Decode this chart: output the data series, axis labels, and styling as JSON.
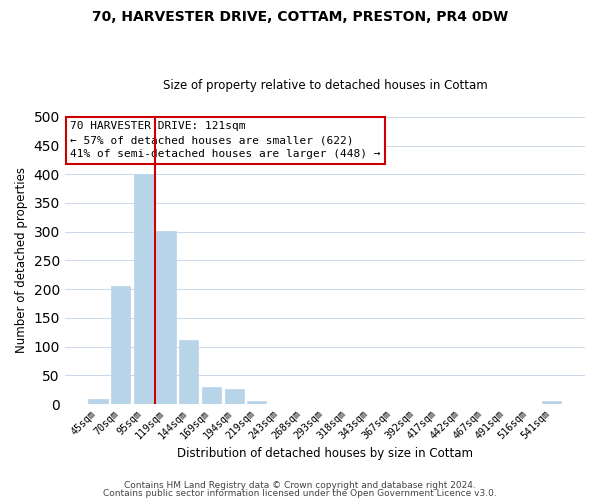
{
  "title": "70, HARVESTER DRIVE, COTTAM, PRESTON, PR4 0DW",
  "subtitle": "Size of property relative to detached houses in Cottam",
  "xlabel": "Distribution of detached houses by size in Cottam",
  "ylabel": "Number of detached properties",
  "bar_color": "#b8d4e8",
  "bar_edge_color": "#b8d4e8",
  "categories": [
    "45sqm",
    "70sqm",
    "95sqm",
    "119sqm",
    "144sqm",
    "169sqm",
    "194sqm",
    "219sqm",
    "243sqm",
    "268sqm",
    "293sqm",
    "318sqm",
    "343sqm",
    "367sqm",
    "392sqm",
    "417sqm",
    "442sqm",
    "467sqm",
    "491sqm",
    "516sqm",
    "541sqm"
  ],
  "values": [
    8,
    205,
    400,
    302,
    112,
    30,
    27,
    6,
    0,
    0,
    0,
    0,
    0,
    0,
    0,
    0,
    0,
    0,
    0,
    0,
    5
  ],
  "ylim": [
    0,
    500
  ],
  "yticks": [
    0,
    50,
    100,
    150,
    200,
    250,
    300,
    350,
    400,
    450,
    500
  ],
  "vline_index": 3,
  "vline_color": "#cc0000",
  "annotation_line1": "70 HARVESTER DRIVE: 121sqm",
  "annotation_line2": "← 57% of detached houses are smaller (622)",
  "annotation_line3": "41% of semi-detached houses are larger (448) →",
  "annotation_box_edgecolor": "#cc0000",
  "footer_line1": "Contains HM Land Registry data © Crown copyright and database right 2024.",
  "footer_line2": "Contains public sector information licensed under the Open Government Licence v3.0.",
  "background_color": "#ffffff",
  "grid_color": "#ccd8e8"
}
